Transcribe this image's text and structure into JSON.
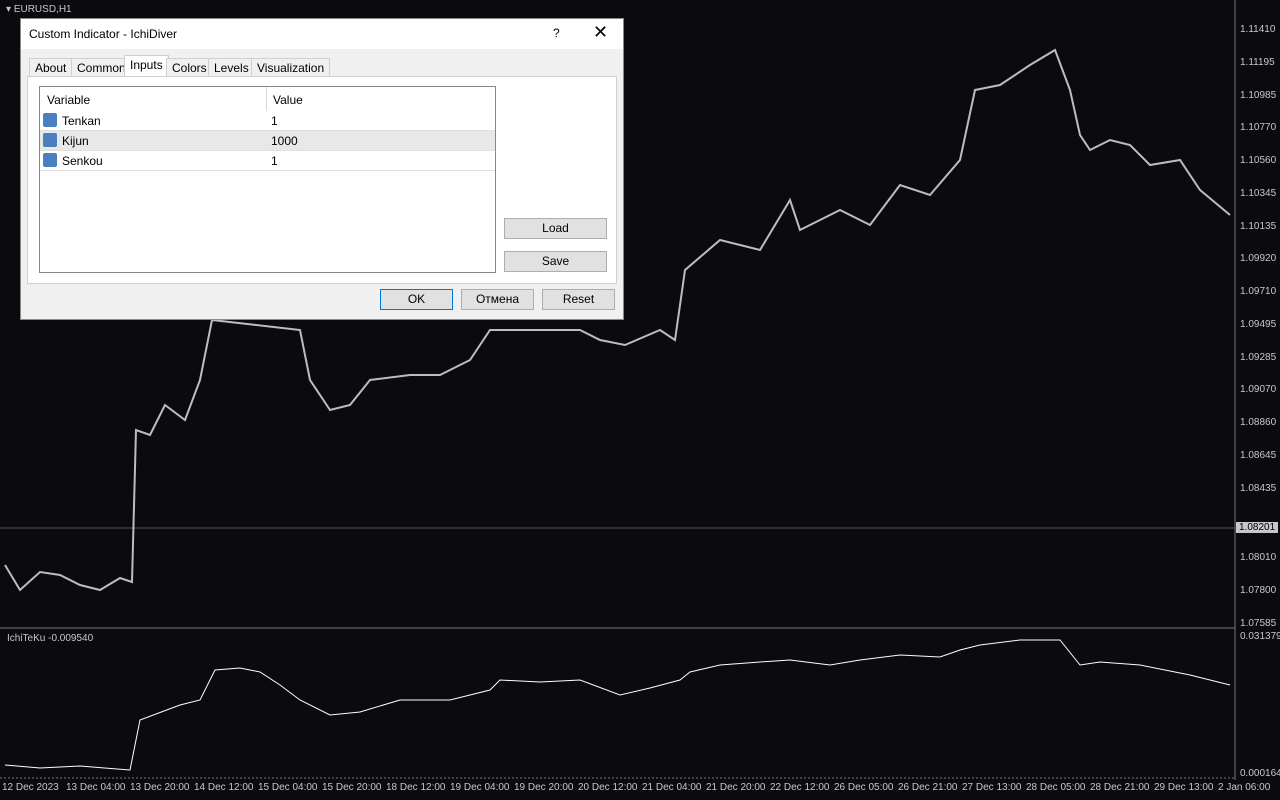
{
  "chart": {
    "symbol": "EURUSD,H1",
    "price_ticks": [
      "1.11410",
      "1.11195",
      "1.10985",
      "1.10770",
      "1.10560",
      "1.10345",
      "1.10135",
      "1.09920",
      "1.09710",
      "1.09495",
      "1.09285",
      "1.09070",
      "1.08860",
      "1.08645",
      "1.08435"
    ],
    "current_price": "1.08201",
    "price_ticks_low": [
      "1.08010",
      "1.07800",
      "1.07585"
    ],
    "time_labels": [
      "12 Dec 2023",
      "13 Dec 04:00",
      "13 Dec 20:00",
      "14 Dec 12:00",
      "15 Dec 04:00",
      "15 Dec 20:00",
      "18 Dec 12:00",
      "19 Dec 04:00",
      "19 Dec 20:00",
      "20 Dec 12:00",
      "21 Dec 04:00",
      "21 Dec 20:00",
      "22 Dec 12:00",
      "26 Dec 05:00",
      "26 Dec 21:00",
      "27 Dec 13:00",
      "28 Dec 05:00",
      "28 Dec 21:00",
      "29 Dec 13:00",
      "2 Jan 06:00"
    ],
    "indicator": {
      "label": "IchiTeKu -0.009540",
      "scale_top": "0.031379",
      "scale_bottom": "0.000164"
    }
  },
  "dialog": {
    "title": "Custom Indicator - IchiDiver",
    "help": "?",
    "tabs": [
      "About",
      "Common",
      "Inputs",
      "Colors",
      "Levels",
      "Visualization"
    ],
    "table": {
      "headers": [
        "Variable",
        "Value"
      ],
      "rows": [
        [
          "Tenkan",
          "1"
        ],
        [
          "Kijun",
          "1000"
        ],
        [
          "Senkou",
          "1"
        ]
      ]
    },
    "side_buttons": [
      "Load",
      "Save"
    ],
    "buttons": [
      "OK",
      "Отмена",
      "Reset"
    ]
  }
}
